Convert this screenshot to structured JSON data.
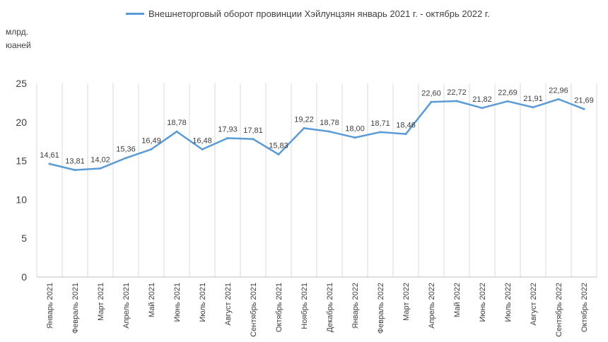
{
  "colors": {
    "series": "#5b9bd5",
    "grid": "#d9d9d9",
    "text": "#404040",
    "axis": "#bfbfbf"
  },
  "unit_label": "млрд.\nюаней",
  "chart_data": {
    "type": "line",
    "title": "",
    "xlabel": "",
    "ylabel": "млрд.\nюаней",
    "ylim": [
      0,
      25
    ],
    "yticks": [
      0,
      5,
      10,
      15,
      20,
      25
    ],
    "grid": "vertical",
    "legend_position": "top",
    "categories": [
      "Январь 2021",
      "Февраль 2021",
      "Март 2021",
      "Апрель 2021",
      "Май 2021",
      "Июнь 2021",
      "Июль 2021",
      "Август 2021",
      "Сентябрь 2021",
      "Октябрь 2021",
      "Ноябрь 2021",
      "Декабрь 2021",
      "Январь 2022",
      "Февраль 2022",
      "Март 2022",
      "Апрель 2022",
      "Май 2022",
      "Июнь 2022",
      "Июль 2022",
      "Август 2022",
      "Сентябрь 2022",
      "Октябрь 2022"
    ],
    "series": [
      {
        "name": "Внешнеторговый оборот провинции Хэйлунцзян январь 2021 г. - октябрь 2022 г.",
        "values": [
          14.61,
          13.81,
          14.02,
          15.36,
          16.49,
          18.78,
          16.48,
          17.93,
          17.81,
          15.83,
          19.22,
          18.78,
          18.0,
          18.71,
          18.46,
          22.6,
          22.72,
          21.82,
          22.69,
          21.91,
          22.96,
          21.69
        ],
        "labels": [
          "14,61",
          "13,81",
          "14,02",
          "15,36",
          "16,49",
          "18,78",
          "16,48",
          "17,93",
          "17,81",
          "15,83",
          "19,22",
          "18,78",
          "18,00",
          "18,71",
          "18,46",
          "22,60",
          "22,72",
          "21,82",
          "22,69",
          "21,91",
          "22,96",
          "21,69"
        ]
      }
    ]
  }
}
